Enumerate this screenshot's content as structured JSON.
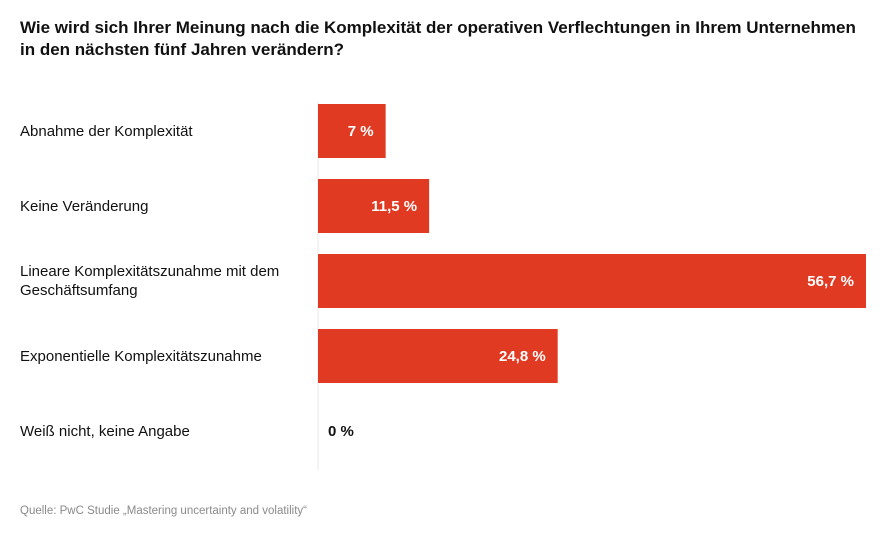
{
  "chart_data": {
    "type": "bar",
    "orientation": "horizontal",
    "title": "Wie wird sich Ihrer Meinung nach die Komplexität der operativen Verflechtungen in Ihrem Unternehmen in den nächsten fünf Jahren verändern?",
    "categories": [
      "Abnahme der Komplexität",
      "Keine Veränderung",
      "Lineare Komplexitätszunahme mit dem Geschäftsumfang",
      "Exponentielle Komplexitätszunahme",
      "Weiß nicht, keine Angabe"
    ],
    "values": [
      7,
      11.5,
      56.7,
      24.8,
      0
    ],
    "value_labels": [
      "7 %",
      "11,5 %",
      "56,7 %",
      "24,8 %",
      "0 %"
    ],
    "xlim": [
      0,
      56.7
    ],
    "grid": false,
    "bar_color": "#e03a23"
  },
  "source": "Quelle: PwC Studie „Mastering uncertainty and volatility“"
}
